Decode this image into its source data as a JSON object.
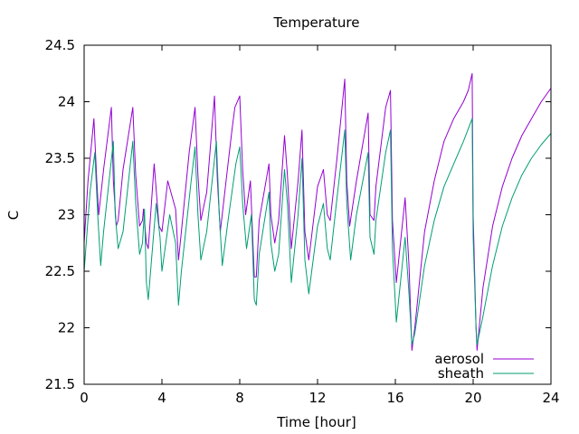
{
  "chart_data": {
    "type": "line",
    "title": "Temperature",
    "xlabel": "Time [hour]",
    "ylabel": "C",
    "xlim": [
      0,
      24
    ],
    "ylim": [
      21.5,
      24.5
    ],
    "xticks": [
      0,
      4,
      8,
      12,
      16,
      20,
      24
    ],
    "xtick_labels": [
      "0",
      "4",
      "8",
      "12",
      "16",
      "20",
      "24"
    ],
    "yticks": [
      21.5,
      22,
      22.5,
      23,
      23.5,
      24,
      24.5
    ],
    "ytick_labels": [
      "21.5",
      "22",
      "22.5",
      "23",
      "23.5",
      "24",
      "24.5"
    ],
    "grid": false,
    "legend_position": "bottom-right",
    "series": [
      {
        "name": "aerosol",
        "color": "#9400d3",
        "points": [
          [
            0.0,
            22.75
          ],
          [
            0.2,
            23.3
          ],
          [
            0.5,
            23.85
          ],
          [
            0.65,
            23.3
          ],
          [
            0.75,
            23.0
          ],
          [
            1.0,
            23.4
          ],
          [
            1.4,
            23.95
          ],
          [
            1.5,
            23.3
          ],
          [
            1.65,
            22.9
          ],
          [
            1.75,
            22.95
          ],
          [
            2.0,
            23.4
          ],
          [
            2.5,
            23.95
          ],
          [
            2.65,
            23.35
          ],
          [
            2.85,
            22.9
          ],
          [
            3.0,
            22.95
          ],
          [
            3.05,
            23.05
          ],
          [
            3.2,
            22.75
          ],
          [
            3.3,
            22.7
          ],
          [
            3.6,
            23.45
          ],
          [
            3.85,
            22.9
          ],
          [
            4.0,
            22.85
          ],
          [
            4.3,
            23.3
          ],
          [
            4.7,
            23.05
          ],
          [
            4.85,
            22.6
          ],
          [
            5.0,
            22.85
          ],
          [
            5.4,
            23.55
          ],
          [
            5.7,
            23.95
          ],
          [
            5.85,
            23.35
          ],
          [
            6.0,
            22.95
          ],
          [
            6.3,
            23.2
          ],
          [
            6.7,
            24.05
          ],
          [
            6.85,
            23.3
          ],
          [
            7.0,
            22.85
          ],
          [
            7.3,
            23.3
          ],
          [
            7.6,
            23.75
          ],
          [
            7.75,
            23.95
          ],
          [
            8.0,
            24.05
          ],
          [
            8.15,
            23.4
          ],
          [
            8.3,
            23.0
          ],
          [
            8.55,
            23.3
          ],
          [
            8.75,
            22.45
          ],
          [
            8.85,
            22.45
          ],
          [
            9.0,
            22.95
          ],
          [
            9.5,
            23.45
          ],
          [
            9.6,
            23.0
          ],
          [
            9.8,
            22.75
          ],
          [
            10.0,
            22.95
          ],
          [
            10.3,
            23.7
          ],
          [
            10.45,
            23.35
          ],
          [
            10.65,
            22.7
          ],
          [
            11.0,
            23.3
          ],
          [
            11.2,
            23.75
          ],
          [
            11.35,
            22.85
          ],
          [
            11.55,
            22.6
          ],
          [
            12.0,
            23.25
          ],
          [
            12.3,
            23.4
          ],
          [
            12.5,
            23.0
          ],
          [
            12.65,
            22.95
          ],
          [
            13.0,
            23.5
          ],
          [
            13.4,
            24.2
          ],
          [
            13.5,
            23.3
          ],
          [
            13.65,
            22.9
          ],
          [
            14.0,
            23.3
          ],
          [
            14.6,
            23.9
          ],
          [
            14.7,
            23.0
          ],
          [
            14.9,
            22.95
          ],
          [
            15.0,
            23.25
          ],
          [
            15.5,
            23.95
          ],
          [
            15.75,
            24.1
          ],
          [
            15.85,
            22.95
          ],
          [
            16.05,
            22.4
          ],
          [
            16.5,
            23.15
          ],
          [
            16.7,
            22.55
          ],
          [
            16.85,
            21.8
          ],
          [
            17.0,
            22.0
          ],
          [
            17.5,
            22.85
          ],
          [
            18.0,
            23.3
          ],
          [
            18.5,
            23.65
          ],
          [
            19.0,
            23.85
          ],
          [
            19.5,
            24.0
          ],
          [
            19.75,
            24.1
          ],
          [
            19.95,
            24.25
          ],
          [
            20.0,
            23.0
          ],
          [
            20.15,
            22.0
          ],
          [
            20.2,
            21.8
          ],
          [
            20.5,
            22.35
          ],
          [
            21.0,
            22.9
          ],
          [
            21.5,
            23.25
          ],
          [
            22.0,
            23.5
          ],
          [
            22.5,
            23.7
          ],
          [
            23.0,
            23.85
          ],
          [
            23.5,
            24.0
          ],
          [
            24.0,
            24.12
          ]
        ]
      },
      {
        "name": "sheath",
        "color": "#009e73",
        "points": [
          [
            0.0,
            22.5
          ],
          [
            0.3,
            23.2
          ],
          [
            0.55,
            23.55
          ],
          [
            0.7,
            23.0
          ],
          [
            0.85,
            22.55
          ],
          [
            1.0,
            22.85
          ],
          [
            1.5,
            23.65
          ],
          [
            1.6,
            23.0
          ],
          [
            1.75,
            22.7
          ],
          [
            2.0,
            22.85
          ],
          [
            2.5,
            23.65
          ],
          [
            2.65,
            23.1
          ],
          [
            2.85,
            22.65
          ],
          [
            3.0,
            22.75
          ],
          [
            3.1,
            23.05
          ],
          [
            3.2,
            22.4
          ],
          [
            3.3,
            22.25
          ],
          [
            3.7,
            23.1
          ],
          [
            3.9,
            22.8
          ],
          [
            4.0,
            22.5
          ],
          [
            4.4,
            23.0
          ],
          [
            4.7,
            22.75
          ],
          [
            4.85,
            22.2
          ],
          [
            5.0,
            22.5
          ],
          [
            5.5,
            23.3
          ],
          [
            5.7,
            23.6
          ],
          [
            5.85,
            23.0
          ],
          [
            6.0,
            22.6
          ],
          [
            6.3,
            22.85
          ],
          [
            6.8,
            23.65
          ],
          [
            6.95,
            23.0
          ],
          [
            7.1,
            22.55
          ],
          [
            7.4,
            22.95
          ],
          [
            7.8,
            23.45
          ],
          [
            8.0,
            23.6
          ],
          [
            8.15,
            23.1
          ],
          [
            8.35,
            22.7
          ],
          [
            8.6,
            23.0
          ],
          [
            8.75,
            22.25
          ],
          [
            8.85,
            22.2
          ],
          [
            9.0,
            22.65
          ],
          [
            9.5,
            23.2
          ],
          [
            9.6,
            22.75
          ],
          [
            9.8,
            22.5
          ],
          [
            10.0,
            22.65
          ],
          [
            10.3,
            23.4
          ],
          [
            10.45,
            23.1
          ],
          [
            10.65,
            22.4
          ],
          [
            11.0,
            23.0
          ],
          [
            11.2,
            23.5
          ],
          [
            11.35,
            22.6
          ],
          [
            11.55,
            22.3
          ],
          [
            12.0,
            22.9
          ],
          [
            12.3,
            23.1
          ],
          [
            12.5,
            22.7
          ],
          [
            12.65,
            22.6
          ],
          [
            13.0,
            23.15
          ],
          [
            13.4,
            23.75
          ],
          [
            13.5,
            23.1
          ],
          [
            13.7,
            22.6
          ],
          [
            14.0,
            23.0
          ],
          [
            14.6,
            23.55
          ],
          [
            14.7,
            22.8
          ],
          [
            14.9,
            22.65
          ],
          [
            15.0,
            22.95
          ],
          [
            15.5,
            23.55
          ],
          [
            15.75,
            23.75
          ],
          [
            15.85,
            22.7
          ],
          [
            16.05,
            22.05
          ],
          [
            16.5,
            22.8
          ],
          [
            16.7,
            22.3
          ],
          [
            16.85,
            21.85
          ],
          [
            17.0,
            21.95
          ],
          [
            17.5,
            22.55
          ],
          [
            18.0,
            22.95
          ],
          [
            18.5,
            23.25
          ],
          [
            19.0,
            23.45
          ],
          [
            19.5,
            23.65
          ],
          [
            19.95,
            23.85
          ],
          [
            20.0,
            22.8
          ],
          [
            20.15,
            22.0
          ],
          [
            20.2,
            21.85
          ],
          [
            20.5,
            22.1
          ],
          [
            21.0,
            22.55
          ],
          [
            21.5,
            22.9
          ],
          [
            22.0,
            23.15
          ],
          [
            22.5,
            23.35
          ],
          [
            23.0,
            23.5
          ],
          [
            23.5,
            23.62
          ],
          [
            24.0,
            23.72
          ]
        ]
      }
    ]
  }
}
